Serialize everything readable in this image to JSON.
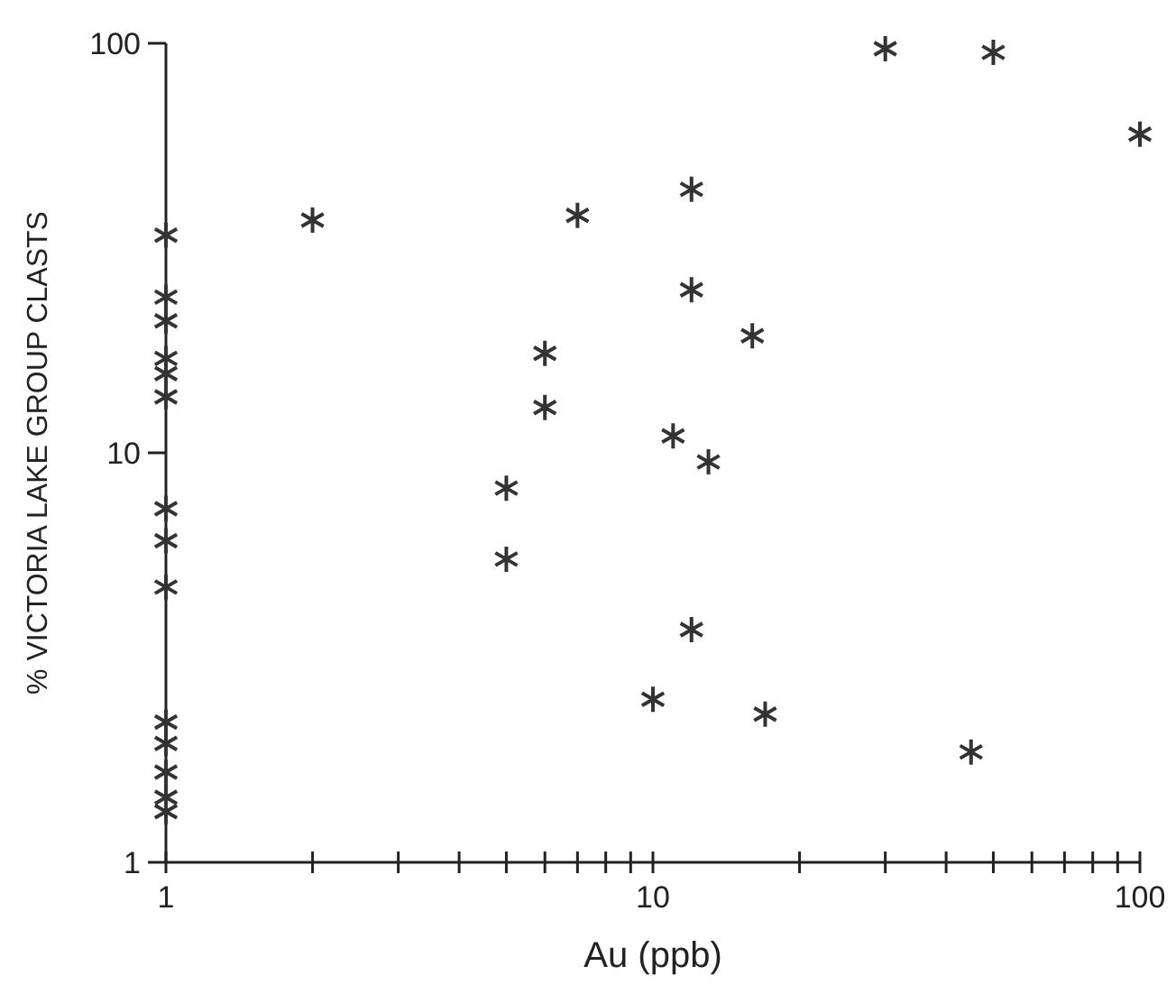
{
  "chart_data": {
    "type": "scatter",
    "xlabel": "Au (ppb)",
    "ylabel": "% VICTORIA LAKE GROUP CLASTS",
    "log": "xy",
    "marker": "cross",
    "xlim": [
      1,
      100
    ],
    "ylim": [
      1,
      100
    ],
    "xticks": [
      1,
      {
        "value": 2,
        "label": null
      },
      {
        "value": 3,
        "label": null
      },
      {
        "value": 4,
        "label": null
      },
      {
        "value": 5,
        "label": null
      },
      {
        "value": 6,
        "label": null
      },
      {
        "value": 7,
        "label": null
      },
      {
        "value": 8,
        "label": null
      },
      {
        "value": 9,
        "label": null
      },
      10,
      {
        "value": 20,
        "label": null
      },
      {
        "value": 30,
        "label": null
      },
      {
        "value": 40,
        "label": null
      },
      {
        "value": 50,
        "label": null
      },
      {
        "value": 60,
        "label": null
      },
      {
        "value": 70,
        "label": null
      },
      {
        "value": 80,
        "label": null
      },
      {
        "value": 90,
        "label": null
      },
      100
    ],
    "yticks": [
      1,
      10,
      100
    ],
    "series": [
      {
        "color": "#333333",
        "x": [
          1,
          1,
          1,
          1,
          1,
          1,
          1,
          1,
          1,
          1,
          1,
          1,
          1,
          1,
          2,
          7,
          6,
          6,
          5,
          5,
          30,
          50,
          100,
          12,
          12,
          16,
          11,
          13,
          12,
          10,
          17,
          45
        ],
        "values": [
          34,
          24,
          21,
          17,
          15.6,
          13.7,
          7.3,
          6.1,
          4.7,
          2.2,
          1.95,
          1.66,
          1.44,
          1.33,
          37,
          38,
          17.5,
          12.9,
          8.2,
          5.5,
          97,
          95,
          60,
          44,
          25,
          19.3,
          11,
          9.5,
          3.7,
          2.5,
          2.3,
          1.86
        ]
      }
    ]
  }
}
